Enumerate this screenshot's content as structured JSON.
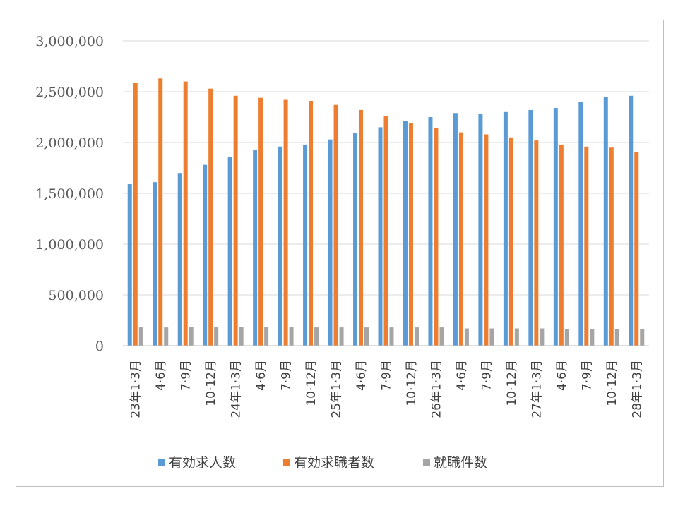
{
  "chart_data": {
    "type": "bar",
    "title": "",
    "xlabel": "",
    "ylabel": "",
    "ylim": [
      0,
      3000000
    ],
    "yticks": [
      "0",
      "500,000",
      "1,000,000",
      "1,500,000",
      "2,000,000",
      "2,500,000",
      "3,000,000"
    ],
    "grid": true,
    "legend_position": "bottom",
    "categories": [
      "23年1·3月",
      "4·6月",
      "7·9月",
      "10·12月",
      "24年1·3月",
      "4·6月",
      "7·9月",
      "10·12月",
      "25年1·3月",
      "4·6月",
      "7·9月",
      "10·12月",
      "26年1·3月",
      "4·6月",
      "7·9月",
      "10·12月",
      "27年1·3月",
      "4·6月",
      "7·9月",
      "10·12月",
      "28年1·3月"
    ],
    "series": [
      {
        "name": "有効求人数",
        "color": "#5b9bd5",
        "values": [
          1590000,
          1610000,
          1700000,
          1780000,
          1860000,
          1930000,
          1960000,
          1980000,
          2030000,
          2090000,
          2150000,
          2210000,
          2250000,
          2290000,
          2280000,
          2300000,
          2320000,
          2340000,
          2400000,
          2450000,
          2460000
        ]
      },
      {
        "name": "有効求職者数",
        "color": "#ed7d31",
        "values": [
          2590000,
          2630000,
          2600000,
          2530000,
          2460000,
          2440000,
          2420000,
          2410000,
          2370000,
          2320000,
          2260000,
          2190000,
          2140000,
          2100000,
          2080000,
          2050000,
          2020000,
          1980000,
          1960000,
          1950000,
          1910000
        ]
      },
      {
        "name": "就職件数",
        "color": "#a5a5a5",
        "values": [
          180000,
          180000,
          185000,
          185000,
          185000,
          185000,
          180000,
          180000,
          180000,
          180000,
          180000,
          180000,
          180000,
          170000,
          170000,
          170000,
          170000,
          165000,
          165000,
          165000,
          160000
        ]
      }
    ]
  }
}
